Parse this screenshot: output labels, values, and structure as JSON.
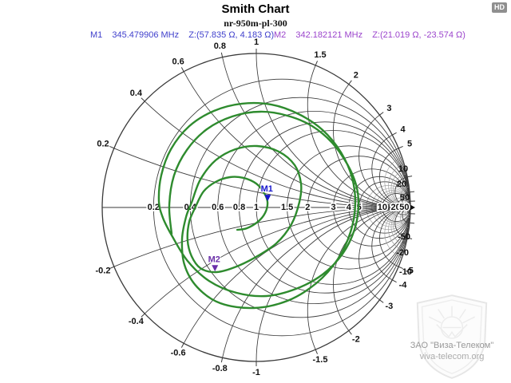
{
  "header": {
    "title": "Smith Chart",
    "subtitle": "nr-950m-pl-300",
    "hd_badge": "HD"
  },
  "markers_bar": {
    "m1": {
      "label": "M1",
      "frequency": "345.479906 MHz",
      "impedance": "Z:(57.835 Ω, 4.183 Ω)",
      "color": "#4040cc"
    },
    "m2": {
      "label": "M2",
      "frequency": "342.182121 MHz",
      "impedance": "Z:(21.019 Ω, -23.574 Ω)",
      "color": "#9b44cc"
    }
  },
  "watermark": {
    "line1": "ЗАО \"Виза-Телеком\"",
    "line2": "viva-telecom.org"
  },
  "chart_data": {
    "type": "smith",
    "title": "Smith Chart",
    "normalization_ohms": 50,
    "grid_color": "#3a3a3a",
    "minor_grid_color": "#969696",
    "rim_color": "#3a3a3a",
    "resistance_circles": [
      0.2,
      0.4,
      0.6,
      0.8,
      1,
      1.5,
      2,
      3,
      4,
      5,
      10,
      20,
      50
    ],
    "reactance_arcs": [
      0.2,
      0.4,
      0.6,
      0.8,
      1,
      1.5,
      2,
      3,
      4,
      5,
      10,
      20,
      50
    ],
    "minor_values": [
      6,
      7,
      8,
      9,
      15,
      30,
      40
    ],
    "trace": {
      "color": "#2e8b2e",
      "points_gamma": [
        [
          -0.549,
          -0.171
        ],
        [
          -0.565,
          0.01
        ],
        [
          -0.534,
          0.207
        ],
        [
          -0.451,
          0.373
        ],
        [
          -0.321,
          0.508
        ],
        [
          -0.155,
          0.591
        ],
        [
          0.026,
          0.622
        ],
        [
          0.202,
          0.596
        ],
        [
          0.363,
          0.528
        ],
        [
          0.492,
          0.42
        ],
        [
          0.591,
          0.28
        ],
        [
          0.648,
          0.145
        ],
        [
          0.663,
          0.01
        ],
        [
          0.637,
          -0.145
        ],
        [
          0.56,
          -0.301
        ],
        [
          0.43,
          -0.435
        ],
        [
          0.259,
          -0.528
        ],
        [
          0.067,
          -0.575
        ],
        [
          -0.13,
          -0.554
        ],
        [
          -0.306,
          -0.477
        ],
        [
          -0.446,
          -0.347
        ],
        [
          -0.549,
          -0.181
        ],
        [
          -0.606,
          -0.067
        ],
        [
          -0.632,
          0.041
        ],
        [
          -0.617,
          0.207
        ],
        [
          -0.554,
          0.378
        ],
        [
          -0.435,
          0.528
        ],
        [
          -0.275,
          0.627
        ],
        [
          -0.093,
          0.674
        ],
        [
          0.098,
          0.668
        ],
        [
          0.275,
          0.606
        ],
        [
          0.43,
          0.503
        ],
        [
          0.549,
          0.358
        ],
        [
          0.622,
          0.192
        ],
        [
          0.642,
          0.016
        ],
        [
          0.611,
          -0.161
        ],
        [
          0.528,
          -0.337
        ],
        [
          0.389,
          -0.492
        ],
        [
          0.202,
          -0.606
        ],
        [
          -0.016,
          -0.653
        ],
        [
          -0.233,
          -0.622
        ],
        [
          -0.383,
          -0.518
        ],
        [
          -0.466,
          -0.373
        ],
        [
          -0.482,
          -0.207
        ],
        [
          -0.456,
          -0.062
        ],
        [
          -0.42,
          0.031
        ],
        [
          -0.363,
          0.181
        ],
        [
          -0.264,
          0.306
        ],
        [
          -0.135,
          0.378
        ],
        [
          0.005,
          0.399
        ],
        [
          0.145,
          0.363
        ],
        [
          0.249,
          0.275
        ],
        [
          0.29,
          0.155
        ],
        [
          0.28,
          0.036
        ],
        [
          0.228,
          -0.109
        ],
        [
          0.13,
          -0.233
        ],
        [
          -0.01,
          -0.326
        ],
        [
          -0.155,
          -0.394
        ],
        [
          -0.269,
          -0.42
        ],
        [
          -0.363,
          -0.394
        ],
        [
          -0.42,
          -0.316
        ],
        [
          -0.446,
          -0.212
        ],
        [
          -0.435,
          -0.093
        ],
        [
          -0.394,
          0.005
        ],
        [
          -0.342,
          0.104
        ],
        [
          -0.264,
          0.166
        ],
        [
          -0.171,
          0.197
        ],
        [
          -0.083,
          0.192
        ],
        [
          0.0,
          0.155
        ],
        [
          0.052,
          0.093
        ],
        [
          0.073,
          0.031
        ],
        [
          0.057,
          -0.036
        ],
        [
          0.01,
          -0.093
        ],
        [
          -0.062,
          -0.135
        ],
        [
          -0.124,
          -0.145
        ]
      ]
    },
    "markers": [
      {
        "id": "M1",
        "frequency_mhz": 345.479906,
        "r_ohms": 57.835,
        "x_ohms": 4.183,
        "color": "#1717cc"
      },
      {
        "id": "M2",
        "frequency_mhz": 342.182121,
        "r_ohms": 21.019,
        "x_ohms": -23.574,
        "color": "#6a2fa8"
      }
    ]
  }
}
